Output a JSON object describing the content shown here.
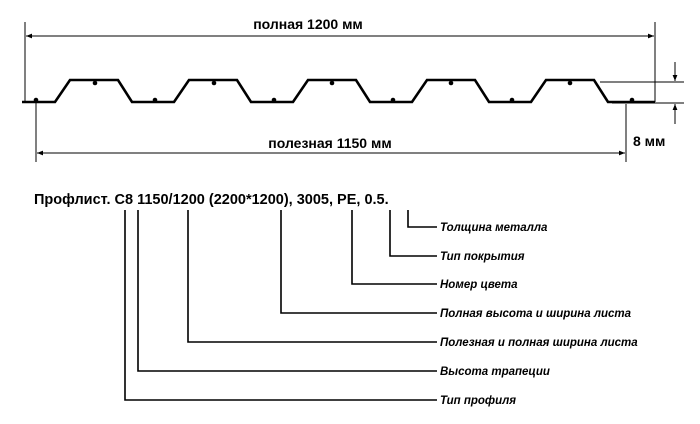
{
  "dimensions": {
    "full_width": "полная 1200 мм",
    "useful_width": "полезная 1150 мм",
    "height": "8 мм"
  },
  "code": {
    "full": "Профлист. С8 1150/1200 (2200*1200), 3005, PE, 0.5."
  },
  "annotations": [
    "Толщина металла",
    "Тип покрытия",
    "Номер цвета",
    "Полная высота и ширина листа",
    "Полезная и полная ширина листа",
    "Высота трапеции",
    "Тип профиля"
  ]
}
